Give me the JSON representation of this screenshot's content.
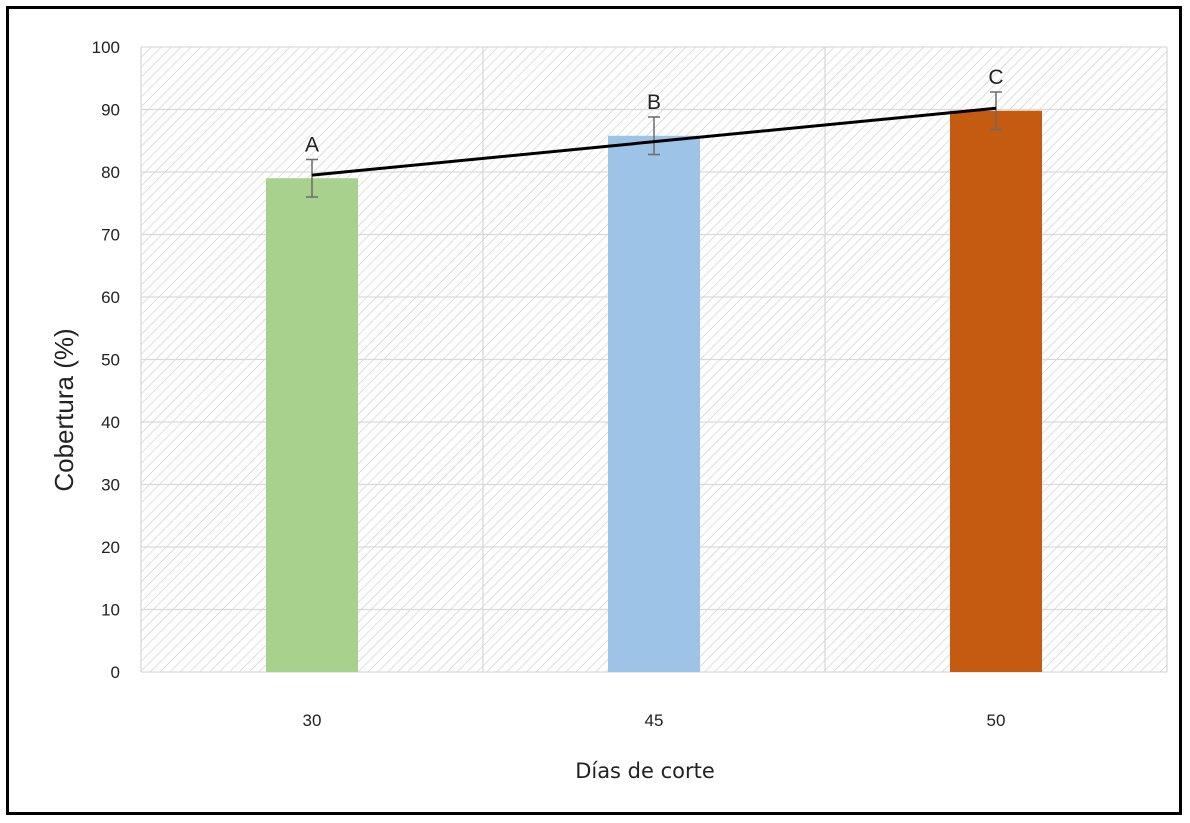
{
  "chart_data": {
    "type": "bar",
    "title": "",
    "xlabel": "Días de corte",
    "ylabel": "Cobertura (%)",
    "categories": [
      "30",
      "45",
      "50"
    ],
    "values": [
      79,
      85.8,
      89.8
    ],
    "error": [
      3,
      3,
      3
    ],
    "bar_colors": [
      "#a9d18e",
      "#9dc3e6",
      "#c55a11"
    ],
    "significance_letters": [
      "A",
      "B",
      "C"
    ],
    "trend_line": {
      "x": [
        "30",
        "50"
      ],
      "y": [
        79.5,
        90.2
      ],
      "color": "#000000"
    },
    "ylim": [
      0,
      100
    ],
    "yticks": [
      0,
      10,
      20,
      30,
      40,
      50,
      60,
      70,
      80,
      90,
      100
    ],
    "grid": true,
    "plot_background": "hatched",
    "legend": "none"
  }
}
